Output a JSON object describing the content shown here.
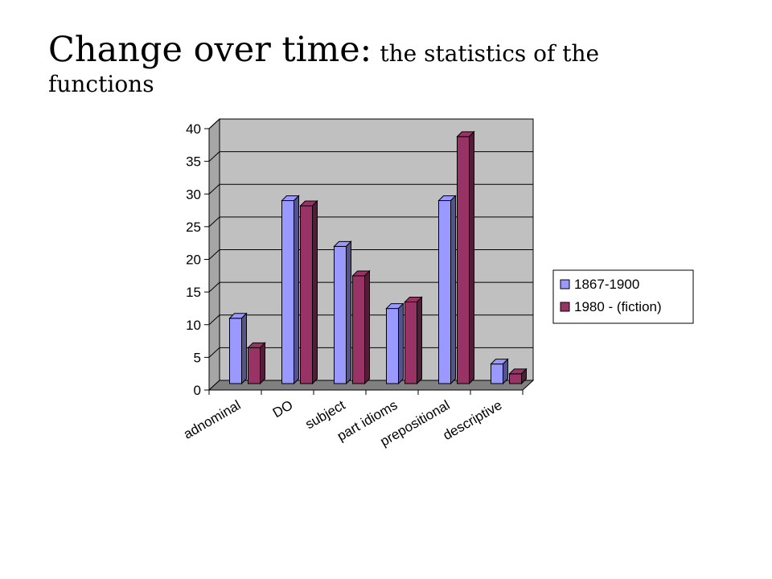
{
  "slide": {
    "title": "Change over time:",
    "subtitle": "the statistics of the functions"
  },
  "chart_data": {
    "type": "bar",
    "categories": [
      "adnominal",
      "DO",
      "subject",
      "part idioms",
      "prepositional",
      "descriptive"
    ],
    "series": [
      {
        "name": "1867-1900",
        "values": [
          10,
          28,
          21,
          11.5,
          28,
          3
        ],
        "color": "#9999ff"
      },
      {
        "name": "1980 - (fiction)",
        "values": [
          5.5,
          27.2,
          16.5,
          12.5,
          37.8,
          1.5
        ],
        "color": "#993366"
      }
    ],
    "ylim": [
      0,
      40
    ],
    "yticks": [
      0,
      5,
      10,
      15,
      20,
      25,
      30,
      35,
      40
    ],
    "grid": true,
    "legend": "right",
    "style": "3d-clustered-column",
    "wall_color": "#c0c0c0",
    "floor_color": "#808080"
  }
}
